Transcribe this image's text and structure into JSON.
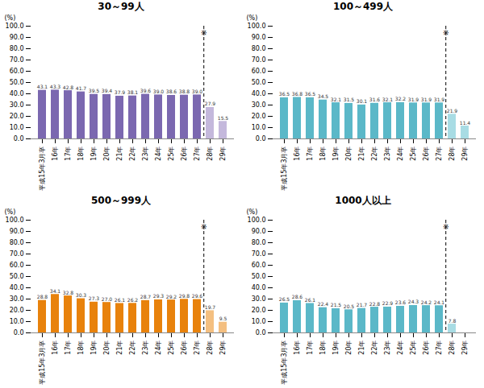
{
  "chart_data": [
    {
      "type": "bar",
      "title": "30～99人",
      "categories": [
        "平成15年3月卒",
        "16年",
        "17年",
        "18年",
        "19年",
        "20年",
        "21年",
        "22年",
        "23年",
        "24年",
        "25年",
        "26年",
        "27年",
        "28年",
        "29年"
      ],
      "values": [
        43.1,
        43.3,
        42.8,
        41.7,
        39.5,
        39.4,
        37.9,
        38.1,
        39.6,
        39.0,
        38.6,
        38.8,
        39.0,
        27.9,
        15.5
      ],
      "value_labels": [
        "43.1",
        "43.3",
        "42.8",
        "41.7",
        "39.5",
        "39.4",
        "37.9",
        "38.1",
        "39.6",
        "39.0",
        "38.6",
        "38.8",
        "39.0",
        "27.9",
        "15.5"
      ],
      "colors": [
        "#7B68B0",
        "#7B68B0",
        "#7B68B0",
        "#7B68B0",
        "#7B68B0",
        "#7B68B0",
        "#7B68B0",
        "#7B68B0",
        "#7B68B0",
        "#7B68B0",
        "#7B68B0",
        "#7B68B0",
        "#7B68B0",
        "#C4B8DC",
        "#C4B8DC"
      ],
      "ylabel": "(%)",
      "ylim": [
        0,
        100
      ],
      "yticks": [
        {
          "value": 0,
          "label": "0.0"
        },
        {
          "value": 10,
          "label": "10.0"
        },
        {
          "value": 20,
          "label": "20.0"
        },
        {
          "value": 30,
          "label": "30.0"
        },
        {
          "value": 40,
          "label": "40.0"
        },
        {
          "value": 50,
          "label": "50.0"
        },
        {
          "value": 60,
          "label": "60.0"
        },
        {
          "value": 70,
          "label": "70.0"
        },
        {
          "value": 80,
          "label": "80.0"
        },
        {
          "value": 90,
          "label": "90.0"
        },
        {
          "value": 100,
          "label": "100.0"
        }
      ],
      "grid": false,
      "data_labels": true,
      "annotations": [
        {
          "text": "※",
          "after": "27年",
          "y": 96,
          "line_style": "dashed"
        }
      ]
    },
    {
      "type": "bar",
      "title": "100～499人",
      "categories": [
        "平成15年3月卒",
        "16年",
        "17年",
        "18年",
        "19年",
        "20年",
        "21年",
        "22年",
        "23年",
        "24年",
        "25年",
        "26年",
        "27年",
        "28年",
        "29年"
      ],
      "values": [
        36.5,
        36.8,
        36.5,
        34.5,
        32.1,
        31.5,
        30.1,
        31.6,
        32.1,
        32.2,
        31.9,
        31.9,
        31.9,
        21.9,
        11.4
      ],
      "value_labels": [
        "36.5",
        "36.8",
        "36.5",
        "34.5",
        "32.1",
        "31.5",
        "30.1",
        "31.6",
        "32.1",
        "32.2",
        "31.9",
        "31.9",
        "31.9",
        "21.9",
        "11.4"
      ],
      "colors": [
        "#5BB8C8",
        "#5BB8C8",
        "#5BB8C8",
        "#5BB8C8",
        "#5BB8C8",
        "#5BB8C8",
        "#5BB8C8",
        "#5BB8C8",
        "#5BB8C8",
        "#5BB8C8",
        "#5BB8C8",
        "#5BB8C8",
        "#5BB8C8",
        "#A8DCE4",
        "#A8DCE4"
      ],
      "ylabel": "(%)",
      "ylim": [
        0,
        100
      ],
      "yticks": [
        {
          "value": 0,
          "label": "0.0"
        },
        {
          "value": 10,
          "label": "10.0"
        },
        {
          "value": 20,
          "label": "20.0"
        },
        {
          "value": 30,
          "label": "30.0"
        },
        {
          "value": 40,
          "label": "40.0"
        },
        {
          "value": 50,
          "label": "50.0"
        },
        {
          "value": 60,
          "label": "60.0"
        },
        {
          "value": 70,
          "label": "70.0"
        },
        {
          "value": 80,
          "label": "80.0"
        },
        {
          "value": 90,
          "label": "90.0"
        },
        {
          "value": 100,
          "label": "100.0"
        }
      ],
      "grid": false,
      "data_labels": true,
      "annotations": [
        {
          "text": "※",
          "after": "27年",
          "y": 96,
          "line_style": "dashed"
        }
      ]
    },
    {
      "type": "bar",
      "title": "500～999人",
      "categories": [
        "平成15年3月卒",
        "16年",
        "17年",
        "18年",
        "19年",
        "20年",
        "21年",
        "22年",
        "23年",
        "24年",
        "25年",
        "26年",
        "27年",
        "28年",
        "29年"
      ],
      "values": [
        28.8,
        34.1,
        32.8,
        30.3,
        27.3,
        27.0,
        26.1,
        26.2,
        28.7,
        29.3,
        29.2,
        29.8,
        29.6,
        19.7,
        9.5
      ],
      "value_labels": [
        "28.8",
        "34.1",
        "32.8",
        "30.3",
        "27.3",
        "27.0",
        "26.1",
        "26.2",
        "28.7",
        "29.3",
        "29.2",
        "29.8",
        "29.6",
        "19.7",
        "9.5"
      ],
      "colors": [
        "#E8820C",
        "#E8820C",
        "#E8820C",
        "#E8820C",
        "#E8820C",
        "#E8820C",
        "#E8820C",
        "#E8820C",
        "#E8820C",
        "#E8820C",
        "#E8820C",
        "#E8820C",
        "#E8820C",
        "#F4BF80",
        "#F4BF80"
      ],
      "ylabel": "(%)",
      "ylim": [
        0,
        100
      ],
      "yticks": [
        {
          "value": 0,
          "label": "0.0"
        },
        {
          "value": 10,
          "label": "10.0"
        },
        {
          "value": 20,
          "label": "20.0"
        },
        {
          "value": 30,
          "label": "30.0"
        },
        {
          "value": 40,
          "label": "40.0"
        },
        {
          "value": 50,
          "label": "50.0"
        },
        {
          "value": 60,
          "label": "60.0"
        },
        {
          "value": 70,
          "label": "70.0"
        },
        {
          "value": 80,
          "label": "80.0"
        },
        {
          "value": 90,
          "label": "90.0"
        },
        {
          "value": 100,
          "label": "100.0"
        }
      ],
      "grid": false,
      "data_labels": true,
      "annotations": [
        {
          "text": "※",
          "after": "27年",
          "y": 96,
          "line_style": "dashed"
        }
      ]
    },
    {
      "type": "bar",
      "title": "1000人以上",
      "categories": [
        "平成15年3月卒",
        "16年",
        "17年",
        "18年",
        "19年",
        "20年",
        "21年",
        "22年",
        "23年",
        "24年",
        "25年",
        "26年",
        "27年",
        "28年",
        "29年"
      ],
      "values": [
        26.5,
        28.6,
        26.1,
        22.4,
        21.5,
        20.5,
        21.7,
        22.8,
        22.9,
        23.6,
        24.3,
        24.2,
        24.1,
        7.8,
        null
      ],
      "value_labels": [
        "26.5",
        "28.6",
        "26.1",
        "22.4",
        "21.5",
        "20.5",
        "21.7",
        "22.8",
        "22.9",
        "23.6",
        "24.3",
        "24.2",
        "24.1",
        "7.8",
        null
      ],
      "colors": [
        "#5BB8C8",
        "#5BB8C8",
        "#5BB8C8",
        "#5BB8C8",
        "#5BB8C8",
        "#5BB8C8",
        "#5BB8C8",
        "#5BB8C8",
        "#5BB8C8",
        "#5BB8C8",
        "#5BB8C8",
        "#5BB8C8",
        "#5BB8C8",
        "#A8DCE4",
        "#A8DCE4"
      ],
      "ylabel": "(%)",
      "ylim": [
        0,
        100
      ],
      "yticks": [
        {
          "value": 0,
          "label": "0.0"
        },
        {
          "value": 10,
          "label": "10.0"
        },
        {
          "value": 20,
          "label": "20.0"
        },
        {
          "value": 30,
          "label": "30.0"
        },
        {
          "value": 40,
          "label": "40.0"
        },
        {
          "value": 50,
          "label": "50.0"
        },
        {
          "value": 60,
          "label": "60.0"
        },
        {
          "value": 70,
          "label": "70.0"
        },
        {
          "value": 80,
          "label": "80.0"
        },
        {
          "value": 90,
          "label": "90.0"
        },
        {
          "value": 100,
          "label": "100.0"
        }
      ],
      "grid": false,
      "data_labels": true,
      "annotations": [
        {
          "text": "※",
          "after": "27年",
          "y": 96,
          "line_style": "dashed"
        }
      ]
    }
  ]
}
